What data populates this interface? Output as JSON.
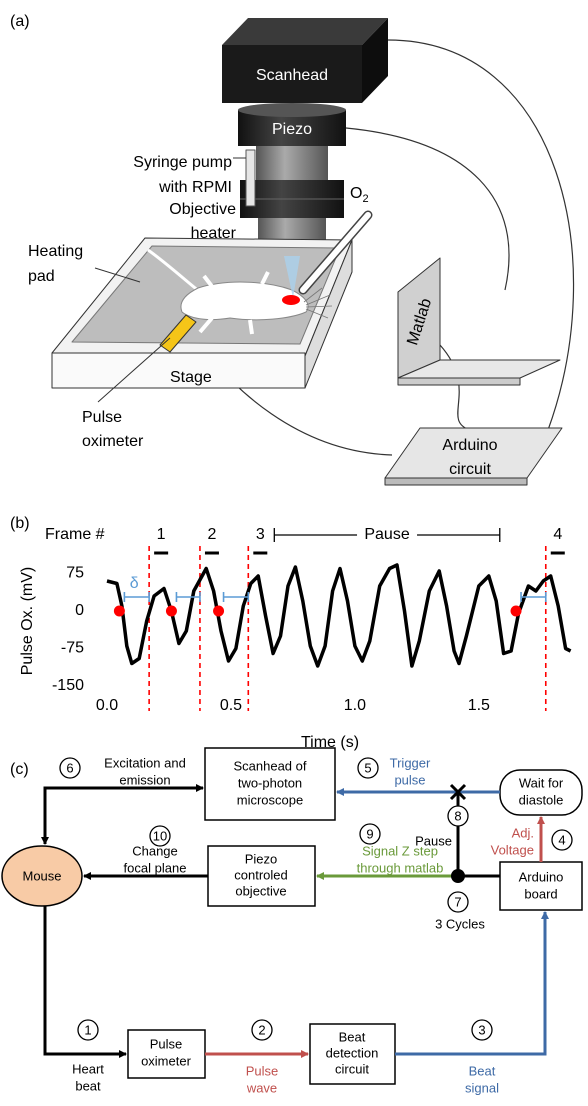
{
  "panel_a": {
    "label": "(a)",
    "scanhead": "Scanhead",
    "piezo": "Piezo",
    "syringe": [
      "Syringe pump",
      "with RPMI"
    ],
    "objective": [
      "Objective",
      "heater"
    ],
    "o2": {
      "text": "O",
      "sub": "2"
    },
    "heating_pad": [
      "Heating",
      "pad"
    ],
    "stage": "Stage",
    "pulse_oximeter": [
      "Pulse",
      "oximeter"
    ],
    "matlab": "Matlab",
    "arduino": [
      "Arduino",
      "circuit"
    ]
  },
  "chart_data": {
    "type": "line",
    "panel_label": "(b)",
    "xlabel": "Time (s)",
    "ylabel": "Pulse Ox. (mV)",
    "frame_header": "Frame #",
    "pause_label": "Pause",
    "delta_label": "δ",
    "x": [
      0.0,
      0.04,
      0.06,
      0.08,
      0.1,
      0.13,
      0.16,
      0.19,
      0.23,
      0.26,
      0.29,
      0.32,
      0.35,
      0.4,
      0.43,
      0.46,
      0.49,
      0.52,
      0.55,
      0.58,
      0.61,
      0.64,
      0.67,
      0.7,
      0.73,
      0.76,
      0.79,
      0.82,
      0.85,
      0.88,
      0.91,
      0.94,
      0.97,
      1.0,
      1.03,
      1.06,
      1.1,
      1.14,
      1.17,
      1.2,
      1.23,
      1.26,
      1.3,
      1.34,
      1.37,
      1.4,
      1.42,
      1.45,
      1.5,
      1.54,
      1.57,
      1.6,
      1.63,
      1.66,
      1.7,
      1.73,
      1.76,
      1.79,
      1.82,
      1.85,
      1.87
    ],
    "values": [
      60,
      55,
      10,
      -70,
      -105,
      -95,
      -20,
      30,
      45,
      0,
      -65,
      -40,
      40,
      85,
      40,
      -40,
      -100,
      -75,
      10,
      55,
      70,
      -10,
      -85,
      -50,
      50,
      88,
      20,
      -70,
      -110,
      -70,
      40,
      85,
      20,
      -70,
      -100,
      -60,
      50,
      85,
      92,
      0,
      -110,
      -60,
      40,
      80,
      10,
      -80,
      -105,
      -50,
      50,
      70,
      20,
      -85,
      -80,
      -5,
      50,
      40,
      60,
      70,
      10,
      -75,
      -80
    ],
    "color": "#000000",
    "diastole": {
      "x": [
        0.05,
        0.26,
        0.45,
        1.65
      ],
      "values": [
        0,
        0,
        0,
        0
      ],
      "color": "#ff0000"
    },
    "frames": {
      "x": [
        0.17,
        0.375,
        0.57,
        1.77
      ],
      "labels": [
        "1",
        "2",
        "3",
        "4"
      ],
      "color": "#ff0000"
    },
    "interval_color": "#5b9bd5",
    "xlim": [
      -0.05,
      1.9
    ],
    "ylim": [
      -150,
      110
    ],
    "xticks": [
      {
        "value": 0,
        "label": "0.0"
      },
      {
        "value": 0.5,
        "label": "0.5"
      },
      {
        "value": 1,
        "label": "1.0"
      },
      {
        "value": 1.5,
        "label": "1.5"
      }
    ],
    "yticks": [
      75,
      0,
      -75,
      -150
    ],
    "grid": false
  },
  "panel_c": {
    "label": "(c)",
    "nodes": {
      "scanhead": [
        "Scanhead of",
        "two-photon",
        "microscope"
      ],
      "wait": [
        "Wait for",
        "diastole"
      ],
      "mouse": "Mouse",
      "piezo": [
        "Piezo",
        "controled",
        "objective"
      ],
      "arduino": [
        "Arduino",
        "board"
      ],
      "oximeter": [
        "Pulse",
        "oximeter"
      ],
      "beat": [
        "Beat",
        "detection",
        "circuit"
      ]
    },
    "steps": [
      {
        "n": "1",
        "text": [
          "Heart",
          "beat"
        ]
      },
      {
        "n": "2",
        "text": [
          "Pulse",
          "wave"
        ]
      },
      {
        "n": "3",
        "text": [
          "Beat",
          "signal"
        ]
      },
      {
        "n": "4",
        "text": [
          "Adj.",
          "Voltage"
        ]
      },
      {
        "n": "5",
        "text": [
          "Trigger",
          "pulse"
        ]
      },
      {
        "n": "6",
        "text": [
          "Excitation and",
          "emission"
        ]
      },
      {
        "n": "7",
        "text": [
          "3 Cycles"
        ]
      },
      {
        "n": "8",
        "text": [
          "Pause"
        ]
      },
      {
        "n": "9",
        "text": [
          "Signal Z step",
          "through matlab"
        ]
      },
      {
        "n": "10",
        "text": [
          "Change",
          "focal plane"
        ]
      }
    ]
  }
}
